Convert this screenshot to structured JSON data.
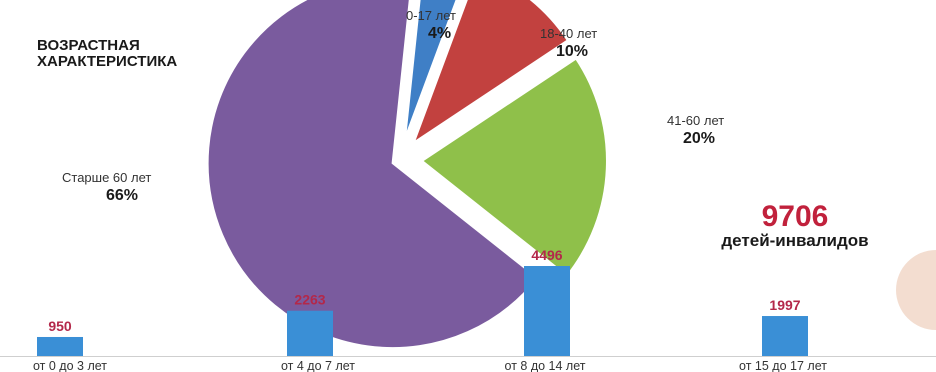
{
  "chart_data": [
    {
      "type": "pie",
      "title": "ВОЗРАСТНАЯ ХАРАКТЕРИСТИКА",
      "slices": [
        {
          "label": "0-17 лет",
          "value": 4,
          "value_label": "4%",
          "color": "#3f7fc6"
        },
        {
          "label": "18-40 лет",
          "value": 10,
          "value_label": "10%",
          "color": "#c2413f"
        },
        {
          "label": "41-60 лет",
          "value": 20,
          "value_label": "20%",
          "color": "#8fc04a"
        },
        {
          "label": "Старше 60 лет",
          "value": 66,
          "value_label": "66%",
          "color": "#7a5b9e"
        }
      ]
    },
    {
      "type": "bar",
      "title": "",
      "categories": [
        "от 0 до 3 лет",
        "от 4 до 7 лет",
        "от 8 до 14 лет",
        "от 15 до 17 лет"
      ],
      "values": [
        950,
        2263,
        4496,
        1997
      ],
      "ylim": [
        0,
        4496
      ],
      "bar_color": "#3a8fd6",
      "value_color": "#b3284a"
    }
  ],
  "total": {
    "value": "9706",
    "caption": "детей-инвалидов",
    "color": "#c1213c"
  }
}
